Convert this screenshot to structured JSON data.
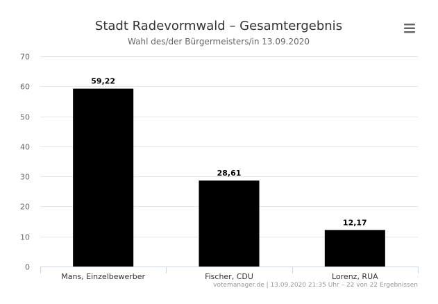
{
  "chart_data": {
    "type": "bar",
    "title": "Stadt Radevormwald – Gesamtergebnis",
    "subtitle": "Wahl des/der Bürgermeisters/in 13.09.2020",
    "categories": [
      "Mans, Einzelbewerber",
      "Fischer, CDU",
      "Lorenz, RUA"
    ],
    "values": [
      59.22,
      28.61,
      12.17
    ],
    "data_labels": [
      "59,22",
      "28,61",
      "12,17"
    ],
    "ylim": [
      0,
      70
    ],
    "yticks": [
      0,
      10,
      20,
      30,
      40,
      50,
      60,
      70
    ],
    "grid": true,
    "bar_color": "#000000",
    "xlabel": "",
    "ylabel": "",
    "credits": "votemanager.de | 13.09.2020 21:35 Uhr – 22 von 22 Ergebnissen"
  },
  "menu_icon": "hamburger-menu-icon"
}
